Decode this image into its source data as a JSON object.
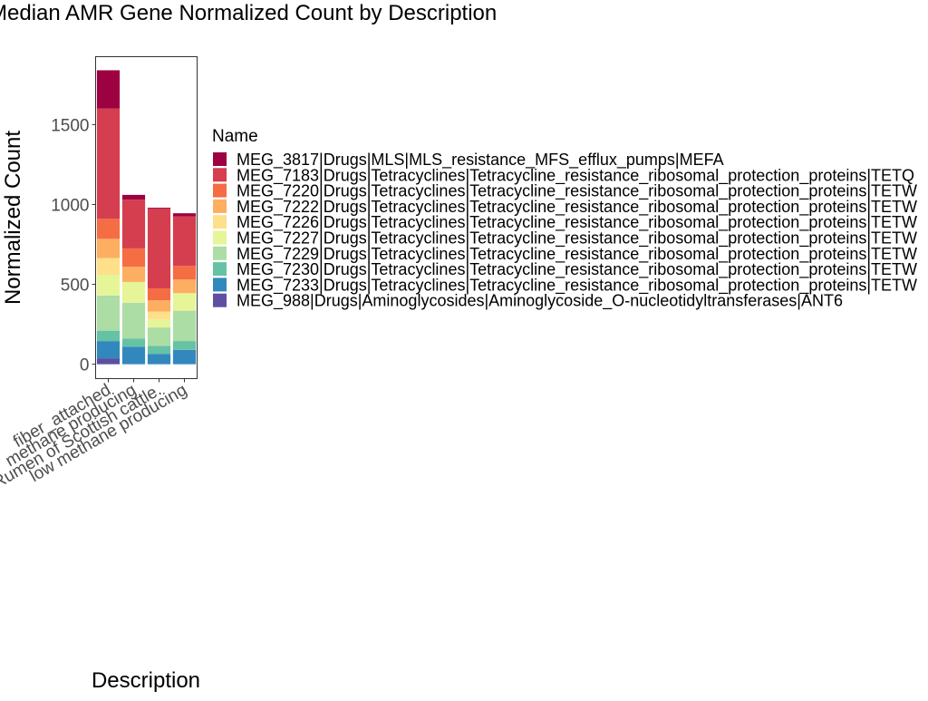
{
  "chart_data": {
    "type": "bar",
    "stacked": true,
    "title": "Median AMR Gene Normalized Count by Description",
    "xlabel": "Description",
    "ylabel": "Normalized Count",
    "ylim": [
      -90,
      1925
    ],
    "yticks": [
      0,
      500,
      1000,
      1500
    ],
    "grid": false,
    "legend_position": "right",
    "legend_title": "Name",
    "categories": [
      "fiber attached",
      "methane producing",
      "Rumen of Scottish cattle.",
      "low methane producing"
    ],
    "category_labels": [
      "fiber_attached",
      "methane producing",
      "Rumen of Scottish cattle.",
      "low methane producing"
    ],
    "series": [
      {
        "name": "MEG_988|Drugs|Aminoglycosides|Aminoglycoside_O-nucleotidyltransferases|ANT6",
        "color": "#5E4FA2",
        "values": [
          35,
          0,
          0,
          0
        ]
      },
      {
        "name": "MEG_7233|Drugs|Tetracyclines|Tetracycline_resistance_ribosomal_protection_proteins|TETW",
        "color": "#3288BD",
        "values": [
          110,
          110,
          65,
          90
        ]
      },
      {
        "name": "MEG_7230|Drugs|Tetracyclines|Tetracycline_resistance_ribosomal_protection_proteins|TETW",
        "color": "#66C2A5",
        "values": [
          65,
          50,
          50,
          55
        ]
      },
      {
        "name": "MEG_7229|Drugs|Tetracyclines|Tetracycline_resistance_ribosomal_protection_proteins|TETW",
        "color": "#ABDDA4",
        "values": [
          220,
          225,
          115,
          190
        ]
      },
      {
        "name": "MEG_7227|Drugs|Tetracyclines|Tetracycline_resistance_ribosomal_protection_proteins|TETW",
        "color": "#E6F598",
        "values": [
          130,
          130,
          50,
          110
        ]
      },
      {
        "name": "MEG_7226|Drugs|Tetracyclines|Tetracycline_resistance_ribosomal_protection_proteins|TETW",
        "color": "#FEE08B",
        "values": [
          105,
          0,
          50,
          0
        ]
      },
      {
        "name": "MEG_7222|Drugs|Tetracyclines|Tetracycline_resistance_ribosomal_protection_proteins|TETW",
        "color": "#FDAE61",
        "values": [
          120,
          95,
          70,
          85
        ]
      },
      {
        "name": "MEG_7220|Drugs|Tetracyclines|Tetracycline_resistance_ribosomal_protection_proteins|TETW",
        "color": "#F46D43",
        "values": [
          125,
          115,
          75,
          85
        ]
      },
      {
        "name": "MEG_7183|Drugs|Tetracyclines|Tetracycline_resistance_ribosomal_protection_proteins|TETQ",
        "color": "#D53E4F",
        "values": [
          690,
          305,
          500,
          310
        ]
      },
      {
        "name": "MEG_3817|Drugs|MLS|MLS_resistance_MFS_efflux_pumps|MEFA",
        "color": "#9E0142",
        "values": [
          240,
          30,
          5,
          20
        ]
      }
    ]
  }
}
